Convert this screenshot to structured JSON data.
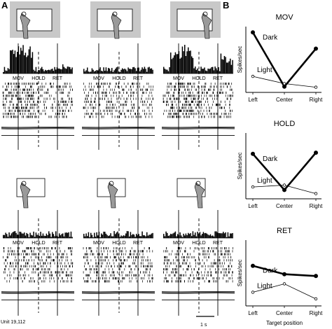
{
  "panel_a_label": "A",
  "panel_b_label": "B",
  "event_labels": [
    "MOV",
    "HOLD",
    "RET"
  ],
  "unit_label": "Unit 19,112",
  "scale_bar_label": "1 s",
  "conditions": [
    "Dark",
    "Light"
  ],
  "colors": {
    "ink": "#000000",
    "box_dark": "#c8c8c8",
    "hand": "#9a9a9a"
  },
  "icons": [
    "hand-on-target-icon"
  ],
  "chart_data": [
    {
      "type": "line",
      "title": "MOV",
      "categories": [
        "Left",
        "Center",
        "Right"
      ],
      "xlabel": "Target position",
      "ylabel": "Spikes/sec",
      "series": [
        {
          "name": "Dark",
          "values": [
            0.95,
            0.05,
            0.68
          ]
        },
        {
          "name": "Light",
          "values": [
            0.22,
            0.1,
            0.04
          ]
        }
      ],
      "ylim": [
        0,
        1
      ]
    },
    {
      "type": "line",
      "title": "HOLD",
      "categories": [
        "Left",
        "Center",
        "Right"
      ],
      "xlabel": "Target position",
      "ylabel": "Spikes/sec",
      "series": [
        {
          "name": "Dark",
          "values": [
            0.7,
            0.1,
            0.72
          ]
        },
        {
          "name": "Light",
          "values": [
            0.15,
            0.18,
            0.04
          ]
        }
      ],
      "ylim": [
        0,
        1
      ]
    },
    {
      "type": "line",
      "title": "RET",
      "categories": [
        "Left",
        "Center",
        "Right"
      ],
      "xlabel": "Target position",
      "ylabel": "Spikes/sec",
      "series": [
        {
          "name": "Dark",
          "values": [
            0.62,
            0.48,
            0.45
          ]
        },
        {
          "name": "Light",
          "values": [
            0.18,
            0.32,
            0.07
          ]
        }
      ],
      "ylim": [
        0,
        1
      ]
    }
  ]
}
